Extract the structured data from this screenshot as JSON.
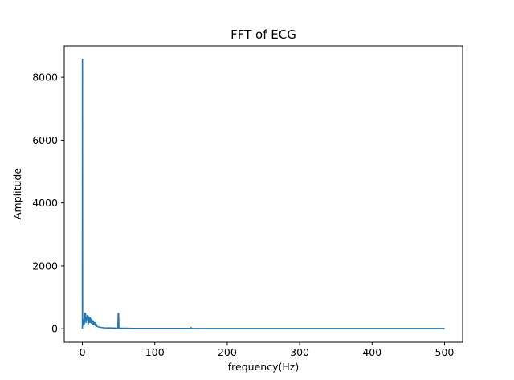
{
  "chart_data": {
    "type": "line",
    "title": "FFT of ECG",
    "xlabel": "frequency(Hz)",
    "ylabel": "Amplitude",
    "xlim": [
      -25,
      525
    ],
    "ylim": [
      -430,
      9000
    ],
    "xticks": [
      0,
      100,
      200,
      300,
      400,
      500
    ],
    "yticks": [
      0,
      2000,
      4000,
      6000,
      8000
    ],
    "xtick_labels": [
      "0",
      "100",
      "200",
      "300",
      "400",
      "500"
    ],
    "ytick_labels": [
      "0",
      "2000",
      "4000",
      "6000",
      "8000"
    ],
    "grid": false,
    "series": [
      {
        "color": "#1f77b4",
        "x": [
          0,
          0.1,
          0.3,
          0.5,
          1,
          1.5,
          2,
          2.5,
          3,
          3.5,
          4,
          4.5,
          5,
          5.5,
          6,
          7,
          8,
          9,
          10,
          11,
          12,
          13,
          14,
          15,
          16,
          17,
          18,
          19,
          20,
          22,
          24,
          26,
          28,
          30,
          35,
          40,
          45,
          49,
          49.5,
          50,
          50.5,
          51,
          55,
          60,
          70,
          80,
          100,
          120,
          140,
          149.5,
          150,
          150.5,
          160,
          200,
          250,
          300,
          350,
          400,
          450,
          500
        ],
        "y": [
          0,
          8570,
          300,
          100,
          250,
          150,
          300,
          120,
          250,
          500,
          280,
          480,
          200,
          350,
          300,
          420,
          150,
          380,
          200,
          350,
          180,
          300,
          150,
          250,
          120,
          200,
          100,
          150,
          80,
          60,
          50,
          40,
          35,
          30,
          25,
          25,
          20,
          20,
          480,
          490,
          25,
          20,
          15,
          15,
          10,
          10,
          8,
          8,
          8,
          8,
          40,
          8,
          5,
          5,
          5,
          5,
          5,
          5,
          5,
          5
        ]
      }
    ]
  }
}
